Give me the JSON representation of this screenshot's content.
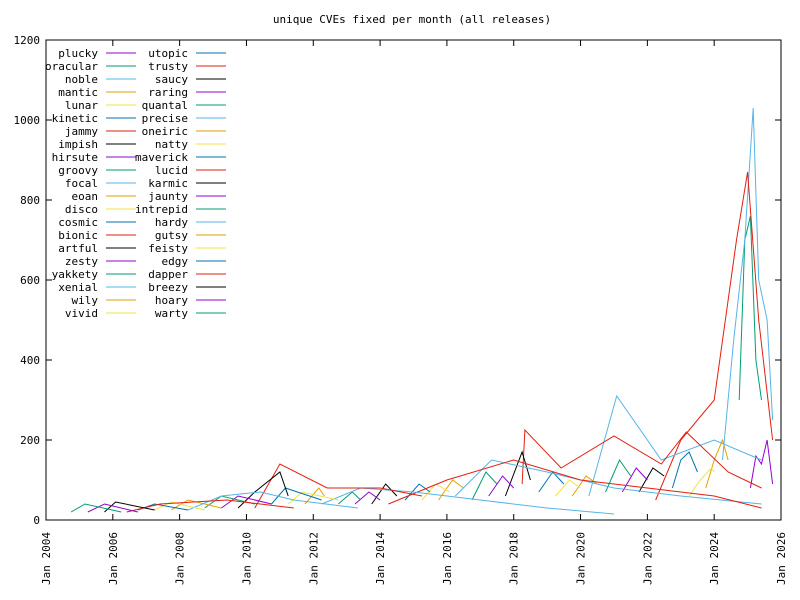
{
  "chart_data": {
    "type": "line",
    "title": "unique CVEs fixed per month (all releases)",
    "xlabel": "",
    "ylabel": "",
    "xlim": [
      "2004-01",
      "2026-01"
    ],
    "ylim": [
      0,
      1200
    ],
    "grid": false,
    "legend_position": "top-left",
    "x_ticks": [
      "Jan 2004",
      "Jan 2006",
      "Jan 2008",
      "Jan 2010",
      "Jan 2012",
      "Jan 2014",
      "Jan 2016",
      "Jan 2018",
      "Jan 2020",
      "Jan 2022",
      "Jan 2024",
      "Jan 2026"
    ],
    "y_ticks": [
      "0",
      "200",
      "400",
      "600",
      "800",
      "1000",
      "1200"
    ],
    "series": [
      {
        "name": "plucky",
        "color": "#9400d3",
        "points": [
          [
            "2025-02",
            80
          ],
          [
            "2025-04",
            160
          ],
          [
            "2025-06",
            140
          ],
          [
            "2025-08",
            200
          ],
          [
            "2025-10",
            90
          ]
        ]
      },
      {
        "name": "oracular",
        "color": "#009e73",
        "points": [
          [
            "2024-10",
            300
          ],
          [
            "2024-12",
            700
          ],
          [
            "2025-02",
            760
          ],
          [
            "2025-04",
            400
          ],
          [
            "2025-06",
            300
          ]
        ]
      },
      {
        "name": "noble",
        "color": "#56b4e9",
        "points": [
          [
            "2024-04",
            150
          ],
          [
            "2024-08",
            450
          ],
          [
            "2024-12",
            700
          ],
          [
            "2025-03",
            1030
          ],
          [
            "2025-05",
            600
          ],
          [
            "2025-08",
            500
          ],
          [
            "2025-10",
            250
          ]
        ]
      },
      {
        "name": "mantic",
        "color": "#e69f00",
        "points": [
          [
            "2023-10",
            80
          ],
          [
            "2024-01",
            150
          ],
          [
            "2024-04",
            200
          ],
          [
            "2024-06",
            150
          ]
        ]
      },
      {
        "name": "lunar",
        "color": "#f0e442",
        "points": [
          [
            "2023-04",
            60
          ],
          [
            "2023-08",
            100
          ],
          [
            "2023-12",
            130
          ],
          [
            "2024-01",
            120
          ]
        ]
      },
      {
        "name": "kinetic",
        "color": "#0072b2",
        "points": [
          [
            "2022-10",
            80
          ],
          [
            "2023-01",
            150
          ],
          [
            "2023-04",
            170
          ],
          [
            "2023-07",
            120
          ]
        ]
      },
      {
        "name": "jammy",
        "color": "#e51e10",
        "points": [
          [
            "2022-04",
            50
          ],
          [
            "2023-01",
            200
          ],
          [
            "2024-01",
            300
          ],
          [
            "2024-09",
            700
          ],
          [
            "2025-01",
            870
          ],
          [
            "2025-05",
            500
          ],
          [
            "2025-10",
            200
          ]
        ]
      },
      {
        "name": "impish",
        "color": "#000000",
        "points": [
          [
            "2021-10",
            70
          ],
          [
            "2022-03",
            130
          ],
          [
            "2022-07",
            110
          ]
        ]
      },
      {
        "name": "hirsute",
        "color": "#9400d3",
        "points": [
          [
            "2021-04",
            70
          ],
          [
            "2021-09",
            130
          ],
          [
            "2022-01",
            100
          ]
        ]
      },
      {
        "name": "groovy",
        "color": "#009e73",
        "points": [
          [
            "2020-10",
            70
          ],
          [
            "2021-03",
            150
          ],
          [
            "2021-07",
            110
          ]
        ]
      },
      {
        "name": "focal",
        "color": "#56b4e9",
        "points": [
          [
            "2020-04",
            60
          ],
          [
            "2021-02",
            310
          ],
          [
            "2022-06",
            150
          ],
          [
            "2024-01",
            200
          ],
          [
            "2025-06",
            150
          ]
        ]
      },
      {
        "name": "eoan",
        "color": "#e69f00",
        "points": [
          [
            "2019-10",
            60
          ],
          [
            "2020-03",
            110
          ],
          [
            "2020-07",
            90
          ]
        ]
      },
      {
        "name": "disco",
        "color": "#f0e442",
        "points": [
          [
            "2019-04",
            60
          ],
          [
            "2019-09",
            100
          ],
          [
            "2020-01",
            80
          ]
        ]
      },
      {
        "name": "cosmic",
        "color": "#0072b2",
        "points": [
          [
            "2018-10",
            70
          ],
          [
            "2019-03",
            120
          ],
          [
            "2019-07",
            90
          ]
        ]
      },
      {
        "name": "bionic",
        "color": "#e51e10",
        "points": [
          [
            "2018-04",
            90
          ],
          [
            "2018-05",
            225
          ],
          [
            "2019-06",
            130
          ],
          [
            "2021-01",
            210
          ],
          [
            "2022-06",
            140
          ],
          [
            "2023-03",
            220
          ],
          [
            "2024-06",
            120
          ],
          [
            "2025-06",
            80
          ]
        ]
      },
      {
        "name": "artful",
        "color": "#000000",
        "points": [
          [
            "2017-10",
            60
          ],
          [
            "2018-04",
            170
          ],
          [
            "2018-07",
            100
          ]
        ]
      },
      {
        "name": "zesty",
        "color": "#9400d3",
        "points": [
          [
            "2017-04",
            60
          ],
          [
            "2017-09",
            110
          ],
          [
            "2018-01",
            80
          ]
        ]
      },
      {
        "name": "yakkety",
        "color": "#009e73",
        "points": [
          [
            "2016-10",
            50
          ],
          [
            "2017-03",
            120
          ],
          [
            "2017-07",
            90
          ]
        ]
      },
      {
        "name": "xenial",
        "color": "#56b4e9",
        "points": [
          [
            "2016-04",
            60
          ],
          [
            "2017-05",
            150
          ],
          [
            "2019-01",
            120
          ],
          [
            "2021-01",
            80
          ],
          [
            "2023-01",
            60
          ],
          [
            "2025-06",
            40
          ]
        ]
      },
      {
        "name": "wily",
        "color": "#e69f00",
        "points": [
          [
            "2015-10",
            50
          ],
          [
            "2016-03",
            100
          ],
          [
            "2016-07",
            80
          ]
        ]
      },
      {
        "name": "vivid",
        "color": "#f0e442",
        "points": [
          [
            "2015-04",
            50
          ],
          [
            "2015-09",
            90
          ],
          [
            "2016-02",
            70
          ]
        ]
      },
      {
        "name": "utopic",
        "color": "#0072b2",
        "points": [
          [
            "2014-10",
            50
          ],
          [
            "2015-03",
            90
          ],
          [
            "2015-07",
            70
          ]
        ]
      },
      {
        "name": "trusty",
        "color": "#e51e10",
        "points": [
          [
            "2014-04",
            40
          ],
          [
            "2016-01",
            100
          ],
          [
            "2018-01",
            150
          ],
          [
            "2020-01",
            100
          ],
          [
            "2022-01",
            80
          ],
          [
            "2024-01",
            60
          ],
          [
            "2025-06",
            30
          ]
        ]
      },
      {
        "name": "saucy",
        "color": "#000000",
        "points": [
          [
            "2013-10",
            40
          ],
          [
            "2014-03",
            90
          ],
          [
            "2014-07",
            60
          ]
        ]
      },
      {
        "name": "raring",
        "color": "#9400d3",
        "points": [
          [
            "2013-04",
            40
          ],
          [
            "2013-09",
            70
          ],
          [
            "2014-01",
            50
          ]
        ]
      },
      {
        "name": "quantal",
        "color": "#009e73",
        "points": [
          [
            "2012-10",
            40
          ],
          [
            "2013-03",
            70
          ],
          [
            "2013-06",
            50
          ]
        ]
      },
      {
        "name": "precise",
        "color": "#56b4e9",
        "points": [
          [
            "2012-04",
            40
          ],
          [
            "2013-06",
            80
          ],
          [
            "2015-01",
            70
          ],
          [
            "2017-01",
            50
          ],
          [
            "2019-01",
            30
          ],
          [
            "2021-01",
            15
          ]
        ]
      },
      {
        "name": "oneiric",
        "color": "#e69f00",
        "points": [
          [
            "2011-10",
            40
          ],
          [
            "2012-03",
            80
          ],
          [
            "2012-05",
            60
          ]
        ]
      },
      {
        "name": "natty",
        "color": "#f0e442",
        "points": [
          [
            "2011-04",
            40
          ],
          [
            "2011-09",
            70
          ],
          [
            "2012-10",
            50
          ]
        ]
      },
      {
        "name": "maverick",
        "color": "#0072b2",
        "points": [
          [
            "2010-10",
            40
          ],
          [
            "2011-03",
            80
          ],
          [
            "2012-04",
            50
          ]
        ]
      },
      {
        "name": "lucid",
        "color": "#e51e10",
        "points": [
          [
            "2010-04",
            30
          ],
          [
            "2011-01",
            140
          ],
          [
            "2012-06",
            80
          ],
          [
            "2014-01",
            80
          ],
          [
            "2015-04",
            60
          ]
        ]
      },
      {
        "name": "karmic",
        "color": "#000000",
        "points": [
          [
            "2009-10",
            30
          ],
          [
            "2010-04",
            70
          ],
          [
            "2011-01",
            120
          ],
          [
            "2011-04",
            60
          ]
        ]
      },
      {
        "name": "jaunty",
        "color": "#9400d3",
        "points": [
          [
            "2009-04",
            30
          ],
          [
            "2009-10",
            60
          ],
          [
            "2010-10",
            40
          ]
        ]
      },
      {
        "name": "intrepid",
        "color": "#009e73",
        "points": [
          [
            "2008-10",
            30
          ],
          [
            "2009-04",
            60
          ],
          [
            "2010-04",
            40
          ]
        ]
      },
      {
        "name": "hardy",
        "color": "#56b4e9",
        "points": [
          [
            "2008-04",
            25
          ],
          [
            "2009-04",
            60
          ],
          [
            "2010-06",
            70
          ],
          [
            "2011-06",
            50
          ],
          [
            "2013-05",
            30
          ]
        ]
      },
      {
        "name": "gutsy",
        "color": "#e69f00",
        "points": [
          [
            "2007-10",
            25
          ],
          [
            "2008-04",
            50
          ],
          [
            "2009-04",
            30
          ]
        ]
      },
      {
        "name": "feisty",
        "color": "#f0e442",
        "points": [
          [
            "2007-04",
            25
          ],
          [
            "2007-10",
            45
          ],
          [
            "2008-10",
            25
          ]
        ]
      },
      {
        "name": "edgy",
        "color": "#0072b2",
        "points": [
          [
            "2006-10",
            25
          ],
          [
            "2007-04",
            40
          ],
          [
            "2008-04",
            25
          ]
        ]
      },
      {
        "name": "dapper",
        "color": "#e51e10",
        "points": [
          [
            "2006-06",
            20
          ],
          [
            "2007-06",
            40
          ],
          [
            "2009-06",
            50
          ],
          [
            "2011-06",
            30
          ]
        ]
      },
      {
        "name": "breezy",
        "color": "#000000",
        "points": [
          [
            "2005-10",
            20
          ],
          [
            "2006-02",
            45
          ],
          [
            "2007-04",
            25
          ]
        ]
      },
      {
        "name": "hoary",
        "color": "#9400d3",
        "points": [
          [
            "2005-04",
            20
          ],
          [
            "2005-10",
            40
          ],
          [
            "2006-10",
            20
          ]
        ]
      },
      {
        "name": "warty",
        "color": "#009e73",
        "points": [
          [
            "2004-10",
            20
          ],
          [
            "2005-03",
            40
          ],
          [
            "2006-04",
            20
          ]
        ]
      }
    ]
  }
}
